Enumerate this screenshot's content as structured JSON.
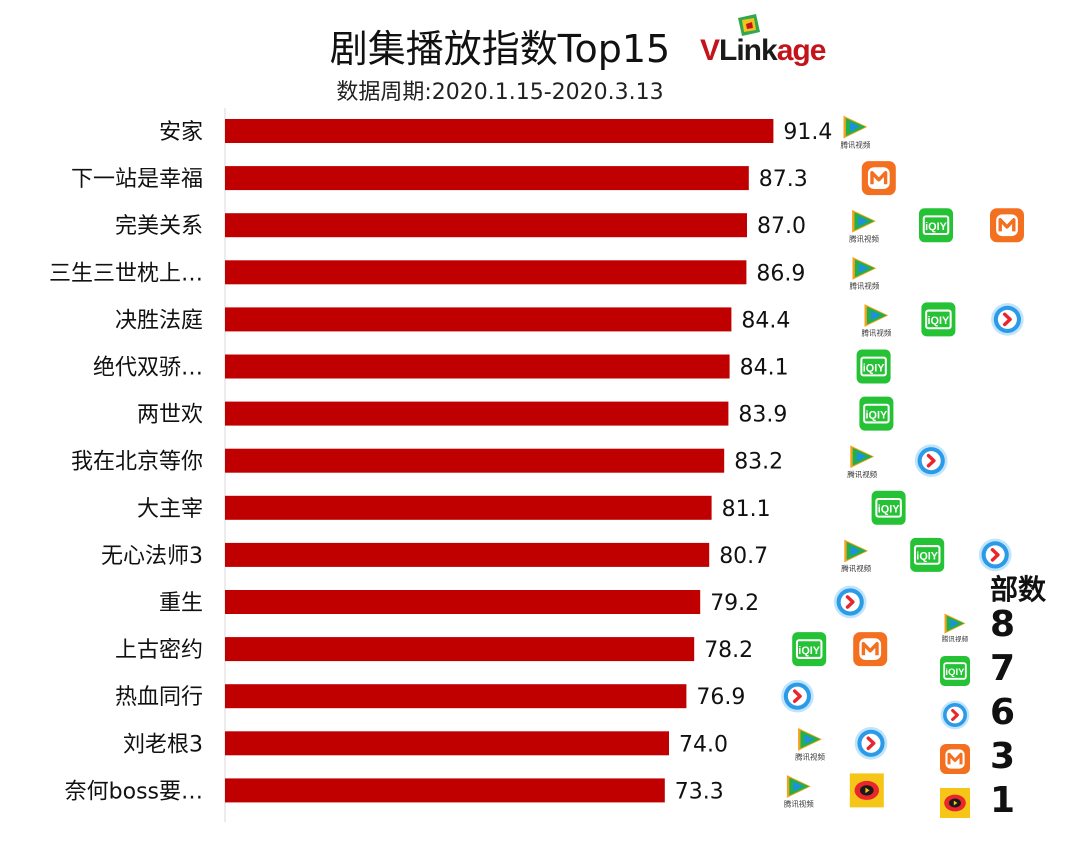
{
  "title": "剧集播放指数Top15",
  "subtitle": "数据周期:2020.1.15-2020.3.13",
  "logo": {
    "v": "V",
    "link": "Link",
    "age": "age"
  },
  "colors": {
    "bar": "#c00000",
    "tencent_green": "#20b14c",
    "tencent_blue": "#1e8fe1",
    "tencent_orange": "#f7a11a",
    "iqiyi": "#24c234",
    "youku": "#2b9be8",
    "mango": "#f37021",
    "other_yellow": "#f5c518"
  },
  "platform_icon_labels": {
    "tencent": "腾讯视频",
    "iqiyi": "iQIY"
  },
  "chart_data": {
    "type": "bar",
    "orientation": "horizontal",
    "categories": [
      "安家",
      "下一站是幸福",
      "完美关系",
      "三生三世枕上…",
      "决胜法庭",
      "绝代双骄…",
      "两世欢",
      "我在北京等你",
      "大主宰",
      "无心法师3",
      "重生",
      "上古密约",
      "热血同行",
      "刘老根3",
      "奈何boss要…"
    ],
    "values": [
      91.4,
      87.3,
      87.0,
      86.9,
      84.4,
      84.1,
      83.9,
      83.2,
      81.1,
      80.7,
      79.2,
      78.2,
      76.9,
      74.0,
      73.3
    ],
    "value_labels": [
      "91.4",
      "87.3",
      "87.0",
      "86.9",
      "84.4",
      "84.1",
      "83.9",
      "83.2",
      "81.1",
      "80.7",
      "79.2",
      "78.2",
      "76.9",
      "74.0",
      "73.3"
    ],
    "platforms": [
      [
        "tencent"
      ],
      [
        "mango"
      ],
      [
        "tencent",
        "iqiyi",
        "mango"
      ],
      [
        "tencent"
      ],
      [
        "tencent",
        "iqiyi",
        "youku"
      ],
      [
        "iqiyi"
      ],
      [
        "iqiyi"
      ],
      [
        "tencent",
        "youku"
      ],
      [
        "iqiyi"
      ],
      [
        "tencent",
        "iqiyi",
        "youku"
      ],
      [
        "youku"
      ],
      [
        "iqiyi",
        "mango"
      ],
      [
        "youku"
      ],
      [
        "tencent",
        "youku"
      ],
      [
        "tencent",
        "other"
      ]
    ],
    "xlim": [
      0,
      100
    ],
    "legend": {
      "title": "部数",
      "placement": "bottom-right",
      "items": [
        {
          "platform": "tencent",
          "count": "8"
        },
        {
          "platform": "iqiyi",
          "count": "7"
        },
        {
          "platform": "youku",
          "count": "6"
        },
        {
          "platform": "mango",
          "count": "3"
        },
        {
          "platform": "other",
          "count": "1"
        }
      ]
    }
  }
}
